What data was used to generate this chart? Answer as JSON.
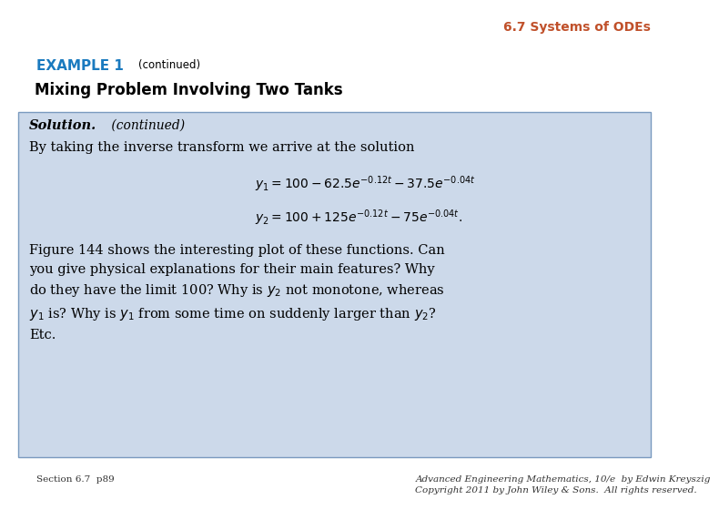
{
  "bg_color": "#ffffff",
  "header_color": "#c0502a",
  "header_text": "6.7 Systems of ODEs",
  "example_label": "EXAMPLE 1",
  "example_label_color": "#1a7abf",
  "continued_text": "(continued)",
  "subtitle": "Mixing Problem Involving Two Tanks",
  "box_bg": "#ccd9ea",
  "box_border": "#7a9abf",
  "solution_italic": "Solution.",
  "solution_continued": " (continued)",
  "intro_text": "By taking the inverse transform we arrive at the solution",
  "eq1": "$y_1 = 100 - 62.5e^{-0.12t} - 37.5e^{-0.04t}$",
  "eq2": "$y_2 = 100 + 125e^{-0.12t} - 75e^{-0.04t}.$",
  "body_text": "Figure 144 shows the interesting plot of these functions. Can\nyou give physical explanations for their main features? Why\ndo they have the limit 100? Why is $y_2$ not monotone, whereas\n$y_1$ is? Why is $y_1$ from some time on suddenly larger than $y_2$?\nEtc.",
  "footer_left": "Section 6.7  p89",
  "footer_right": "Advanced Engineering Mathematics, 10/e  by Edwin Kreyszig\nCopyright 2011 by John Wiley & Sons.  All rights reserved.",
  "footer_color": "#333333"
}
